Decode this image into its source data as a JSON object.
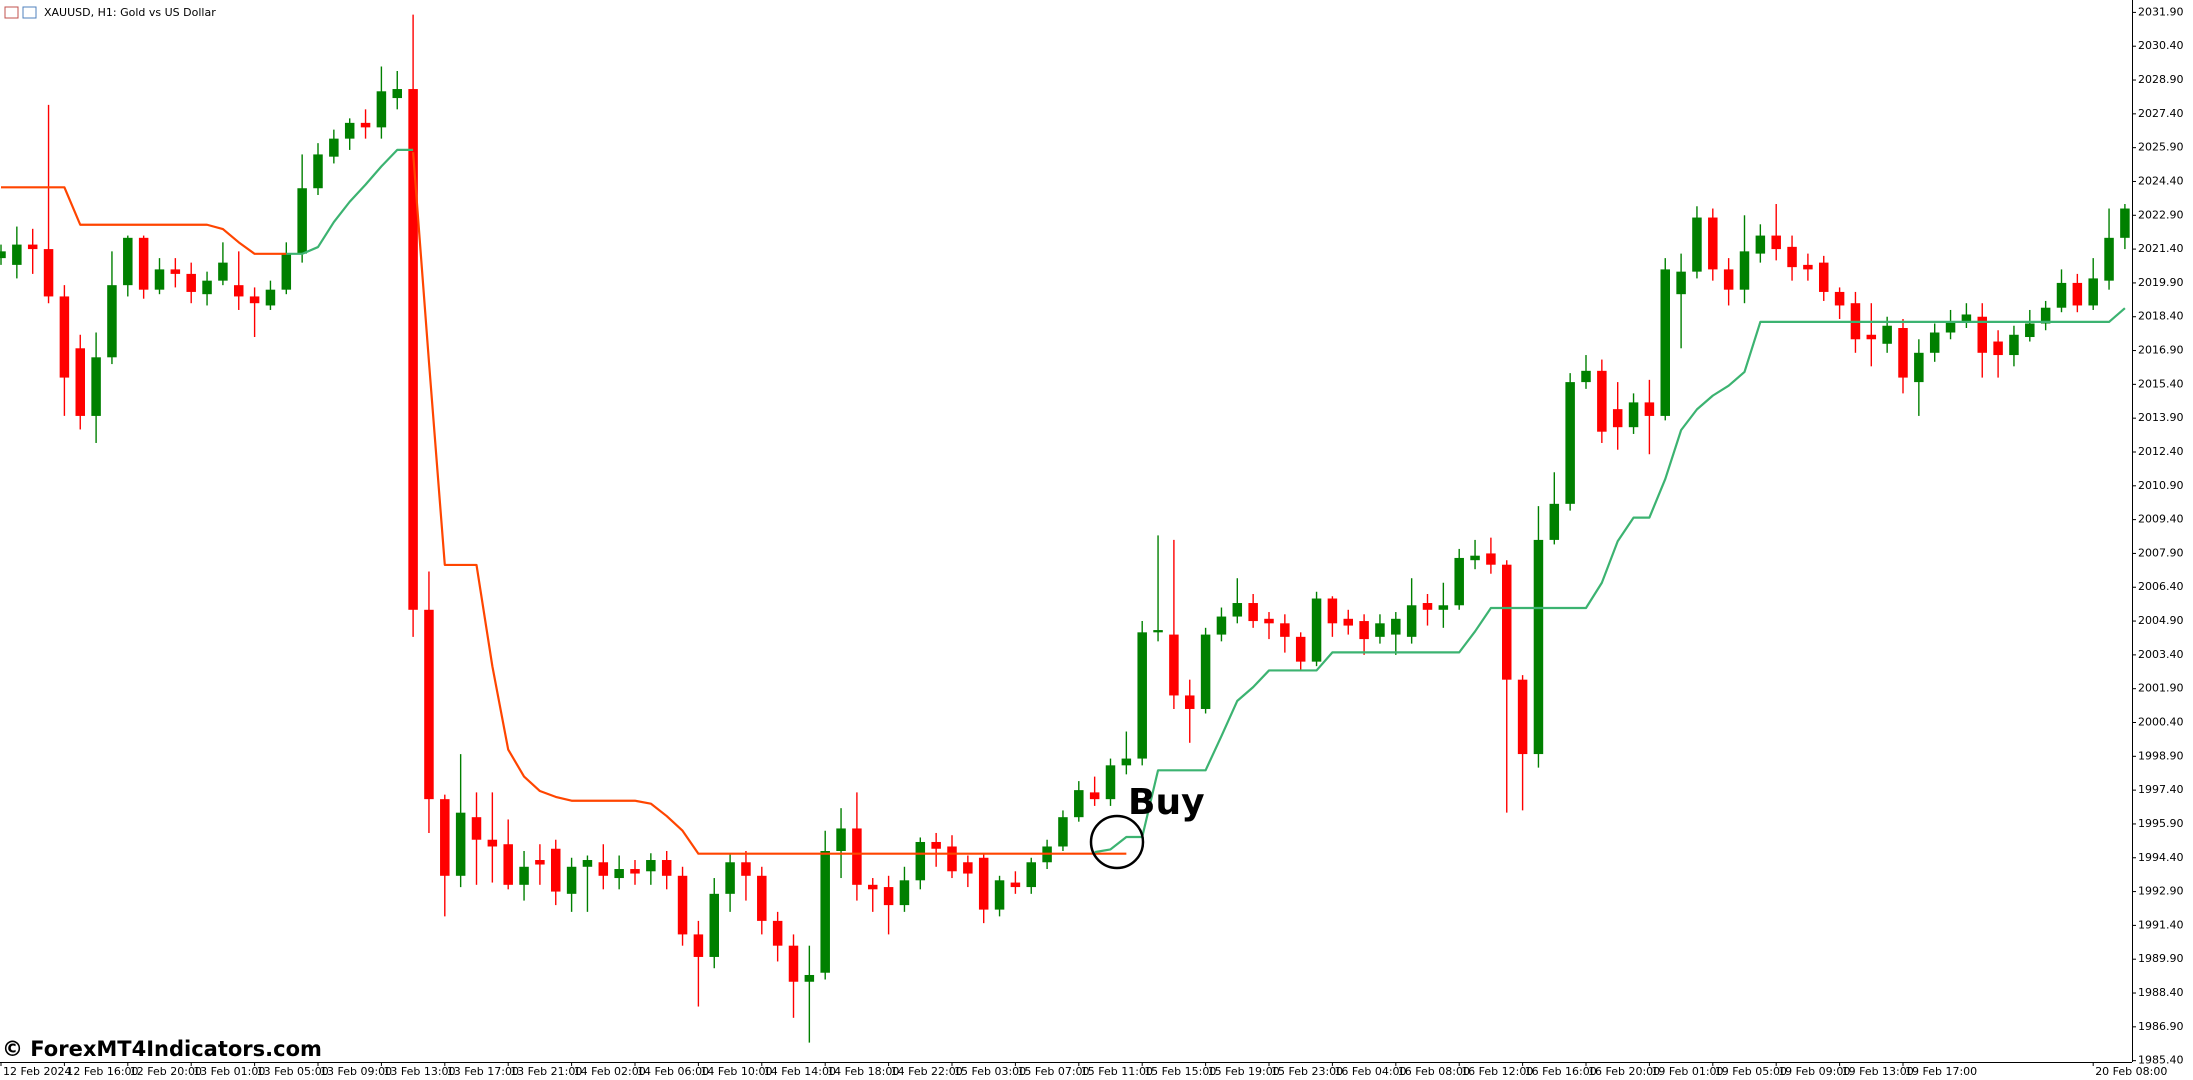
{
  "chart_data": {
    "type": "candlestick",
    "title": "XAUUSD, H1:  Gold vs US Dollar",
    "annotation": "Buy",
    "watermark": "© ForexMT4Indicators.com",
    "up_color": "#008000",
    "down_color": "#ff0000",
    "ylim": [
      1985.34,
      2032.45
    ],
    "yticks": [
      {
        "value": 2031.9,
        "label": "2031.90"
      },
      {
        "value": 2030.4,
        "label": "2030.40"
      },
      {
        "value": 2028.9,
        "label": "2028.90"
      },
      {
        "value": 2027.4,
        "label": "2027.40"
      },
      {
        "value": 2025.9,
        "label": "2025.90"
      },
      {
        "value": 2024.4,
        "label": "2024.40"
      },
      {
        "value": 2022.9,
        "label": "2022.90"
      },
      {
        "value": 2021.4,
        "label": "2021.40"
      },
      {
        "value": 2019.9,
        "label": "2019.90"
      },
      {
        "value": 2018.4,
        "label": "2018.40"
      },
      {
        "value": 2016.9,
        "label": "2016.90"
      },
      {
        "value": 2015.4,
        "label": "2015.40"
      },
      {
        "value": 2013.9,
        "label": "2013.90"
      },
      {
        "value": 2012.4,
        "label": "2012.40"
      },
      {
        "value": 2010.9,
        "label": "2010.90"
      },
      {
        "value": 2009.4,
        "label": "2009.40"
      },
      {
        "value": 2007.9,
        "label": "2007.90"
      },
      {
        "value": 2006.4,
        "label": "2006.40"
      },
      {
        "value": 2004.9,
        "label": "2004.90"
      },
      {
        "value": 2003.4,
        "label": "2003.40"
      },
      {
        "value": 2001.9,
        "label": "2001.90"
      },
      {
        "value": 2000.4,
        "label": "2000.40"
      },
      {
        "value": 1998.9,
        "label": "1998.90"
      },
      {
        "value": 1997.4,
        "label": "1997.40"
      },
      {
        "value": 1995.9,
        "label": "1995.90"
      },
      {
        "value": 1994.4,
        "label": "1994.40"
      },
      {
        "value": 1992.9,
        "label": "1992.90"
      },
      {
        "value": 1991.4,
        "label": "1991.40"
      },
      {
        "value": 1989.9,
        "label": "1989.90"
      },
      {
        "value": 1988.4,
        "label": "1988.40"
      },
      {
        "value": 1986.9,
        "label": "1986.90"
      },
      {
        "value": 1985.4,
        "label": "1985.40"
      }
    ],
    "categories": [
      "12 Feb 2024",
      null,
      null,
      null,
      "12 Feb 16:00",
      null,
      null,
      null,
      "12 Feb 20:00",
      null,
      null,
      null,
      "13 Feb 01:00",
      null,
      null,
      null,
      "13 Feb 05:00",
      null,
      null,
      null,
      "13 Feb 09:00",
      null,
      null,
      null,
      "13 Feb 13:00",
      null,
      null,
      null,
      "13 Feb 17:00",
      null,
      null,
      null,
      "13 Feb 21:00",
      null,
      null,
      null,
      "14 Feb 02:00",
      null,
      null,
      null,
      "14 Feb 06:00",
      null,
      null,
      null,
      "14 Feb 10:00",
      null,
      null,
      null,
      "14 Feb 14:00",
      null,
      null,
      null,
      "14 Feb 18:00",
      null,
      null,
      null,
      "14 Feb 22:00",
      null,
      null,
      null,
      "15 Feb 03:00",
      null,
      null,
      null,
      "15 Feb 07:00",
      null,
      null,
      null,
      "15 Feb 11:00",
      null,
      null,
      null,
      "15 Feb 15:00",
      null,
      null,
      null,
      "15 Feb 19:00",
      null,
      null,
      null,
      "15 Feb 23:00",
      null,
      null,
      null,
      "16 Feb 04:00",
      null,
      null,
      null,
      "16 Feb 08:00",
      null,
      null,
      null,
      "16 Feb 12:00",
      null,
      null,
      null,
      "16 Feb 16:00",
      null,
      null,
      null,
      "16 Feb 20:00",
      null,
      null,
      null,
      "19 Feb 01:00",
      null,
      null,
      null,
      "19 Feb 05:00",
      null,
      null,
      null,
      "19 Feb 09:00",
      null,
      null,
      null,
      "19 Feb 13:00",
      null,
      null,
      null,
      "19 Feb 17:00",
      null,
      null,
      null,
      null,
      null,
      null,
      null,
      null,
      null,
      null,
      null,
      "20 Feb 08:00",
      null,
      null
    ],
    "open": [
      2021.0,
      2020.7,
      2021.6,
      2021.4,
      2019.3,
      2017.0,
      2014.0,
      2016.6,
      2019.8,
      2021.9,
      2019.6,
      2020.5,
      2020.3,
      2019.4,
      2020.0,
      2019.8,
      2019.3,
      2018.9,
      2019.6,
      2021.2,
      2024.1,
      2025.5,
      2026.3,
      2027.0,
      2026.8,
      2028.1,
      2028.5,
      2005.4,
      1997.0,
      1993.6,
      1996.2,
      1995.2,
      1995.0,
      1993.2,
      1994.3,
      1994.8,
      1992.8,
      1994.0,
      1994.2,
      1993.5,
      1993.9,
      1993.8,
      1994.3,
      1993.6,
      1991.0,
      1990.0,
      1992.8,
      1994.2,
      1993.6,
      1991.6,
      1990.5,
      1988.9,
      1989.3,
      1994.7,
      1995.7,
      1993.2,
      1993.1,
      1992.3,
      1993.4,
      1995.1,
      1994.9,
      1994.2,
      1994.4,
      1992.1,
      1993.3,
      1993.1,
      1994.2,
      1994.9,
      1996.2,
      1997.3,
      1997.0,
      1998.5,
      1998.8,
      2004.4,
      2004.3,
      2001.6,
      2001.0,
      2004.3,
      2005.1,
      2005.7,
      2005.0,
      2004.8,
      2004.2,
      2003.1,
      2005.9,
      2005.0,
      2004.9,
      2004.2,
      2004.3,
      2004.2,
      2005.7,
      2005.4,
      2005.6,
      2007.6,
      2007.9,
      2007.4,
      2002.3,
      1999.0,
      2008.5,
      2010.1,
      2015.5,
      2016.0,
      2014.3,
      2013.5,
      2014.6,
      2014.0,
      2019.4,
      2020.4,
      2022.8,
      2020.5,
      2019.6,
      2021.2,
      2022.0,
      2021.5,
      2020.7,
      2020.8,
      2019.5,
      2019.0,
      2017.6,
      2017.2,
      2017.9,
      2015.5,
      2016.8,
      2017.7,
      2018.2,
      2018.4,
      2017.3,
      2016.7,
      2017.5,
      2018.1,
      2018.8,
      2019.9,
      2018.9,
      2020.0,
      2021.9
    ],
    "high": [
      2021.6,
      2022.4,
      2022.3,
      2027.8,
      2019.8,
      2017.6,
      2017.7,
      2021.3,
      2022.0,
      2022.0,
      2021.0,
      2021.0,
      2020.8,
      2020.4,
      2021.7,
      2021.3,
      2019.7,
      2020.0,
      2021.7,
      2025.6,
      2026.1,
      2026.7,
      2027.2,
      2027.6,
      2029.5,
      2029.3,
      2031.8,
      2007.1,
      1997.2,
      1999.0,
      1997.3,
      1997.3,
      1996.1,
      1994.7,
      1995.0,
      1995.2,
      1994.4,
      1994.5,
      1995.0,
      1994.5,
      1994.3,
      1994.6,
      1994.7,
      1994.0,
      1991.6,
      1993.5,
      1994.6,
      1994.7,
      1994.0,
      1992.0,
      1991.0,
      1990.5,
      1995.6,
      1996.6,
      1997.3,
      1993.5,
      1993.6,
      1994.0,
      1995.3,
      1995.5,
      1995.4,
      1994.5,
      1994.6,
      1993.6,
      1993.8,
      1994.4,
      1995.2,
      1996.5,
      1997.8,
      1998.0,
      1998.8,
      2000.0,
      2004.9,
      2008.7,
      2008.5,
      2002.3,
      2004.6,
      2005.5,
      2006.8,
      2006.1,
      2005.3,
      2005.2,
      2004.4,
      2006.2,
      2006.0,
      2005.4,
      2005.2,
      2005.2,
      2005.3,
      2006.8,
      2006.1,
      2006.6,
      2008.1,
      2008.5,
      2008.6,
      2007.6,
      2002.5,
      2010.0,
      2011.5,
      2015.9,
      2016.7,
      2016.5,
      2015.5,
      2015.0,
      2015.6,
      2021.0,
      2021.2,
      2023.3,
      2023.2,
      2021.0,
      2022.9,
      2022.5,
      2023.4,
      2022.0,
      2021.2,
      2021.1,
      2019.7,
      2019.5,
      2019.0,
      2018.4,
      2018.3,
      2017.4,
      2018.1,
      2018.7,
      2019.0,
      2019.0,
      2017.8,
      2018.0,
      2018.7,
      2019.1,
      2020.5,
      2020.3,
      2021.0,
      2023.2,
      2023.4
    ],
    "low": [
      2020.7,
      2020.1,
      2020.3,
      2019.0,
      2014.0,
      2013.4,
      2012.8,
      2016.3,
      2019.3,
      2019.2,
      2019.4,
      2019.7,
      2019.0,
      2018.9,
      2019.8,
      2018.7,
      2017.5,
      2018.7,
      2019.4,
      2020.8,
      2023.8,
      2025.2,
      2025.8,
      2026.3,
      2026.3,
      2027.6,
      2004.2,
      1995.5,
      1991.8,
      1993.1,
      1993.2,
      1993.3,
      1993.0,
      1992.5,
      1993.2,
      1992.3,
      1992.0,
      1992.0,
      1993.0,
      1993.0,
      1993.2,
      1993.2,
      1993.0,
      1990.5,
      1987.8,
      1989.5,
      1992.0,
      1992.5,
      1991.0,
      1989.8,
      1987.3,
      1986.2,
      1989.0,
      1993.5,
      1992.5,
      1992.0,
      1991.0,
      1992.0,
      1993.0,
      1994.0,
      1993.5,
      1993.1,
      1991.5,
      1991.8,
      1992.8,
      1992.8,
      1993.9,
      1994.7,
      1996.0,
      1996.7,
      1996.7,
      1998.1,
      1998.5,
      2004.0,
      2001.0,
      1999.5,
      2000.8,
      2004.0,
      2004.8,
      2004.6,
      2004.1,
      2003.5,
      2002.7,
      2002.9,
      2004.2,
      2004.3,
      2003.4,
      2003.9,
      2003.4,
      2003.9,
      2004.7,
      2004.6,
      2005.4,
      2007.2,
      2007.0,
      1996.4,
      1996.5,
      1998.4,
      2008.3,
      2009.8,
      2015.2,
      2012.8,
      2012.5,
      2013.2,
      2012.3,
      2013.8,
      2017.0,
      2020.1,
      2020.0,
      2018.9,
      2019.0,
      2020.8,
      2020.9,
      2020.0,
      2020.0,
      2019.1,
      2018.3,
      2016.8,
      2016.2,
      2016.8,
      2015.0,
      2014.0,
      2016.4,
      2017.4,
      2017.9,
      2015.7,
      2015.7,
      2016.2,
      2017.3,
      2017.8,
      2018.6,
      2018.6,
      2018.7,
      2019.6,
      2021.4
    ],
    "close": [
      2021.3,
      2021.6,
      2021.4,
      2019.3,
      2015.7,
      2014.0,
      2016.6,
      2019.8,
      2021.9,
      2019.6,
      2020.5,
      2020.3,
      2019.5,
      2020.0,
      2020.8,
      2019.3,
      2019.0,
      2019.6,
      2021.2,
      2024.1,
      2025.6,
      2026.3,
      2027.0,
      2026.8,
      2028.4,
      2028.5,
      2005.4,
      1997.0,
      1993.6,
      1996.4,
      1995.2,
      1994.9,
      1993.2,
      1994.0,
      1994.1,
      1992.9,
      1994.0,
      1994.3,
      1993.6,
      1993.9,
      1993.7,
      1994.3,
      1993.6,
      1991.0,
      1990.0,
      1992.8,
      1994.2,
      1993.6,
      1991.6,
      1990.5,
      1988.9,
      1989.2,
      1994.7,
      1995.7,
      1993.2,
      1993.0,
      1992.3,
      1993.4,
      1995.1,
      1994.8,
      1993.8,
      1993.7,
      1992.1,
      1993.4,
      1993.1,
      1994.2,
      1994.9,
      1996.2,
      1997.4,
      1997.0,
      1998.5,
      1998.8,
      2004.4,
      2004.5,
      2001.6,
      2001.0,
      2004.3,
      2005.1,
      2005.7,
      2004.9,
      2004.8,
      2004.2,
      2003.1,
      2005.9,
      2004.8,
      2004.7,
      2004.1,
      2004.8,
      2005.0,
      2005.6,
      2005.4,
      2005.6,
      2007.7,
      2007.8,
      2007.4,
      2002.3,
      1999.0,
      2008.5,
      2010.1,
      2015.5,
      2016.0,
      2013.3,
      2013.5,
      2014.6,
      2014.0,
      2020.5,
      2020.4,
      2022.8,
      2020.5,
      2019.6,
      2021.3,
      2022.0,
      2021.4,
      2020.6,
      2020.5,
      2019.5,
      2018.9,
      2017.4,
      2017.4,
      2018.0,
      2015.7,
      2016.8,
      2017.7,
      2018.2,
      2018.5,
      2016.8,
      2016.7,
      2017.6,
      2018.1,
      2018.8,
      2019.9,
      2018.9,
      2020.1,
      2021.9,
      2023.2
    ],
    "lines": [
      {
        "color": "#ff4500",
        "values": [
          2024.14,
          2024.14,
          2024.14,
          2024.14,
          2024.14,
          2022.48,
          2022.48,
          2022.48,
          2022.48,
          2022.48,
          2022.48,
          2022.48,
          2022.48,
          2022.48,
          2022.29,
          2021.7,
          2021.19,
          2021.19,
          2021.19,
          null,
          null,
          null,
          null,
          null,
          null,
          null,
          2025.7,
          2016.4,
          2007.39,
          2007.39,
          2007.39,
          2002.9,
          1999.2,
          1998.0,
          1997.36,
          1997.1,
          1996.93,
          1996.93,
          1996.93,
          1996.93,
          1996.93,
          1996.8,
          1996.25,
          1995.6,
          1994.58,
          1994.58,
          1994.58,
          1994.58,
          1994.58,
          1994.58,
          1994.58,
          1994.58,
          1994.58,
          1994.58,
          1994.58,
          1994.58,
          1994.58,
          1994.58,
          1994.58,
          1994.58,
          1994.58,
          1994.58,
          1994.58,
          1994.58,
          1994.58,
          1994.58,
          1994.58,
          1994.58,
          1994.58,
          1994.58,
          1994.58,
          1994.58,
          null,
          null,
          null,
          null,
          null,
          null,
          null,
          null,
          null,
          null,
          null,
          null,
          null,
          null,
          null,
          null,
          null,
          null,
          null,
          null,
          null,
          null,
          null,
          null,
          null,
          null,
          null,
          null,
          null,
          null,
          null,
          null,
          null,
          null,
          null,
          null,
          null,
          null,
          null,
          null,
          null,
          null,
          null,
          null,
          null,
          null,
          null,
          null,
          null,
          null,
          null,
          null,
          null,
          null,
          null,
          null,
          null,
          null,
          null,
          null,
          null,
          null,
          null
        ]
      },
      {
        "color": "#3cb371",
        "values": [
          null,
          null,
          null,
          null,
          null,
          null,
          null,
          null,
          null,
          null,
          null,
          null,
          null,
          null,
          null,
          null,
          null,
          null,
          2021.19,
          2021.19,
          2021.49,
          2022.6,
          2023.5,
          2024.26,
          2025.07,
          2025.8,
          2025.8,
          null,
          null,
          null,
          null,
          null,
          null,
          null,
          null,
          null,
          null,
          null,
          null,
          null,
          null,
          null,
          null,
          null,
          null,
          null,
          null,
          null,
          null,
          null,
          null,
          null,
          null,
          null,
          null,
          null,
          null,
          null,
          null,
          null,
          null,
          null,
          null,
          null,
          null,
          null,
          null,
          null,
          null,
          1994.65,
          1994.77,
          1995.32,
          1995.32,
          1998.28,
          1998.28,
          1998.28,
          1998.28,
          1999.8,
          2001.36,
          2001.97,
          2002.71,
          2002.71,
          2002.71,
          2002.71,
          2003.51,
          2003.51,
          2003.51,
          2003.51,
          2003.51,
          2003.51,
          2003.51,
          2003.51,
          2003.51,
          2004.44,
          2005.48,
          2005.48,
          2005.48,
          2005.48,
          2005.48,
          2005.48,
          2005.48,
          2006.6,
          2008.44,
          2009.49,
          2009.49,
          2011.2,
          2013.37,
          2014.29,
          2014.9,
          2015.34,
          2015.95,
          2018.17,
          2018.17,
          2018.17,
          2018.17,
          2018.17,
          2018.17,
          2018.17,
          2018.17,
          2018.17,
          2018.17,
          2018.17,
          2018.17,
          2018.17,
          2018.17,
          2018.17,
          2018.17,
          2018.17,
          2018.17,
          2018.17,
          2018.17,
          2018.17,
          2018.17,
          2018.17,
          2018.78
        ]
      }
    ]
  }
}
